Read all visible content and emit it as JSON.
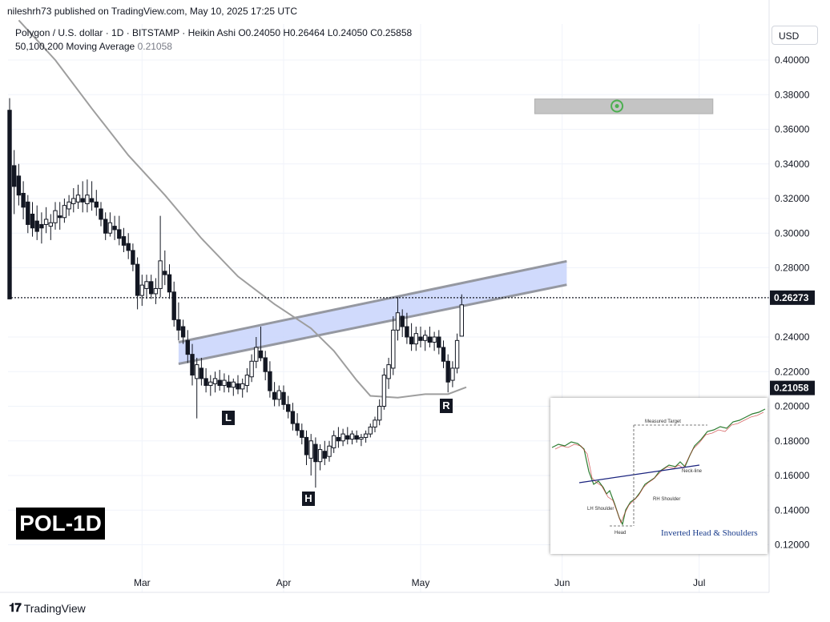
{
  "header": {
    "published_line": "nileshrh73 published on TradingView.com, May 10, 2025 17:25 UTC",
    "legend_line1": "Polygon / U.S. dollar · 1D · BITSTAMP · Heikin Ashi  O0.24050  H0.26464  L0.24050  C0.25858",
    "legend_line2_label": "50,100,200 Moving Average",
    "legend_line2_value": "0.21058",
    "currency_button": "USD"
  },
  "badges": {
    "ticker": "POL-1D",
    "left_shoulder": "L",
    "head": "H",
    "right_shoulder": "R"
  },
  "branding": {
    "logo_text": "TradingView",
    "logo_icon": "tradingview-logo-icon"
  },
  "colors": {
    "bull": "#131722",
    "bear": "#131722",
    "neckline_fill": "#c8d3fb",
    "neckline_stroke": "#9598a1",
    "ma_line": "#9e9e9e",
    "target_box": "#c4c4c4",
    "target_icon": "#4caf50",
    "price_label_bg": "#131722"
  },
  "chart_data": {
    "type": "candlestick",
    "symbol": "Polygon / U.S. dollar",
    "interval": "1D",
    "exchange": "BITSTAMP",
    "style": "Heikin Ashi",
    "ohlc_last": {
      "open": 0.2405,
      "high": 0.26464,
      "low": 0.2405,
      "close": 0.25858
    },
    "y_ticks": [
      0.4,
      0.38,
      0.36,
      0.34,
      0.32,
      0.3,
      0.28,
      0.24,
      0.22,
      0.2,
      0.18,
      0.16,
      0.14,
      0.12
    ],
    "y_tick_labels": [
      "0.40000",
      "0.38000",
      "0.36000",
      "0.34000",
      "0.32000",
      "0.30000",
      "0.28000",
      "0.24000",
      "0.22000",
      "0.20000",
      "0.18000",
      "0.16000",
      "0.14000",
      "0.12000"
    ],
    "ylim": [
      0.105,
      0.41
    ],
    "x_labels": [
      {
        "label": "Mar",
        "date": "2025-03-01"
      },
      {
        "label": "Apr",
        "date": "2025-04-01"
      },
      {
        "label": "May",
        "date": "2025-05-01"
      },
      {
        "label": "Jun",
        "date": "2025-06-01"
      },
      {
        "label": "Jul",
        "date": "2025-07-01"
      }
    ],
    "current_price": {
      "value": 0.26273,
      "label": "0.26273"
    },
    "ma_price": {
      "value": 0.21058,
      "label": "0.21058"
    },
    "moving_average": {
      "name": "50,100,200 Moving Average",
      "points": [
        {
          "date": "2025-02-02",
          "value": 0.423
        },
        {
          "date": "2025-02-10",
          "value": 0.4
        },
        {
          "date": "2025-02-18",
          "value": 0.372
        },
        {
          "date": "2025-02-26",
          "value": 0.345
        },
        {
          "date": "2025-03-06",
          "value": 0.322
        },
        {
          "date": "2025-03-14",
          "value": 0.297
        },
        {
          "date": "2025-03-22",
          "value": 0.275
        },
        {
          "date": "2025-03-30",
          "value": 0.259
        },
        {
          "date": "2025-04-07",
          "value": 0.245
        },
        {
          "date": "2025-04-12",
          "value": 0.232
        },
        {
          "date": "2025-04-17",
          "value": 0.215
        },
        {
          "date": "2025-04-20",
          "value": 0.206
        },
        {
          "date": "2025-04-26",
          "value": 0.205
        },
        {
          "date": "2025-05-02",
          "value": 0.207
        },
        {
          "date": "2025-05-07",
          "value": 0.207
        },
        {
          "date": "2025-05-11",
          "value": 0.211
        }
      ]
    },
    "neckline_channel": {
      "start_date": "2025-03-09",
      "end_date": "2025-06-02",
      "upper": [
        0.237,
        0.2838
      ],
      "lower": [
        0.2245,
        0.2702
      ]
    },
    "target_zone": {
      "start_date": "2025-05-26",
      "end_date": "2025-07-04",
      "top": 0.3775,
      "bottom": 0.369,
      "marker_date": "2025-06-13",
      "marker_value": 0.3734
    },
    "candles": [
      {
        "date": "2025-01-31",
        "o": 0.371,
        "h": 0.378,
        "l": 0.262,
        "c": 0.262
      },
      {
        "date": "2025-02-01",
        "o": 0.339,
        "h": 0.348,
        "l": 0.311,
        "c": 0.327
      },
      {
        "date": "2025-02-02",
        "o": 0.333,
        "h": 0.34,
        "l": 0.316,
        "c": 0.322
      },
      {
        "date": "2025-02-03",
        "o": 0.323,
        "h": 0.33,
        "l": 0.308,
        "c": 0.315
      },
      {
        "date": "2025-02-04",
        "o": 0.318,
        "h": 0.322,
        "l": 0.3,
        "c": 0.305
      },
      {
        "date": "2025-02-05",
        "o": 0.311,
        "h": 0.318,
        "l": 0.298,
        "c": 0.303
      },
      {
        "date": "2025-02-06",
        "o": 0.307,
        "h": 0.316,
        "l": 0.296,
        "c": 0.301
      },
      {
        "date": "2025-02-07",
        "o": 0.305,
        "h": 0.312,
        "l": 0.294,
        "c": 0.303
      },
      {
        "date": "2025-02-08",
        "o": 0.305,
        "h": 0.315,
        "l": 0.3,
        "c": 0.308
      },
      {
        "date": "2025-02-09",
        "o": 0.304,
        "h": 0.311,
        "l": 0.296,
        "c": 0.306
      },
      {
        "date": "2025-02-10",
        "o": 0.306,
        "h": 0.318,
        "l": 0.302,
        "c": 0.313
      },
      {
        "date": "2025-02-11",
        "o": 0.31,
        "h": 0.318,
        "l": 0.302,
        "c": 0.309
      },
      {
        "date": "2025-02-12",
        "o": 0.309,
        "h": 0.32,
        "l": 0.306,
        "c": 0.316
      },
      {
        "date": "2025-02-13",
        "o": 0.314,
        "h": 0.322,
        "l": 0.31,
        "c": 0.318
      },
      {
        "date": "2025-02-14",
        "o": 0.317,
        "h": 0.326,
        "l": 0.312,
        "c": 0.32
      },
      {
        "date": "2025-02-15",
        "o": 0.318,
        "h": 0.328,
        "l": 0.314,
        "c": 0.322
      },
      {
        "date": "2025-02-16",
        "o": 0.32,
        "h": 0.33,
        "l": 0.312,
        "c": 0.318
      },
      {
        "date": "2025-02-17",
        "o": 0.317,
        "h": 0.331,
        "l": 0.312,
        "c": 0.322
      },
      {
        "date": "2025-02-18",
        "o": 0.32,
        "h": 0.33,
        "l": 0.313,
        "c": 0.318
      },
      {
        "date": "2025-02-19",
        "o": 0.318,
        "h": 0.325,
        "l": 0.31,
        "c": 0.315
      },
      {
        "date": "2025-02-20",
        "o": 0.314,
        "h": 0.318,
        "l": 0.304,
        "c": 0.308
      },
      {
        "date": "2025-02-21",
        "o": 0.308,
        "h": 0.312,
        "l": 0.296,
        "c": 0.3
      },
      {
        "date": "2025-02-22",
        "o": 0.3,
        "h": 0.312,
        "l": 0.298,
        "c": 0.306
      },
      {
        "date": "2025-02-23",
        "o": 0.304,
        "h": 0.31,
        "l": 0.296,
        "c": 0.302
      },
      {
        "date": "2025-02-24",
        "o": 0.302,
        "h": 0.31,
        "l": 0.293,
        "c": 0.297
      },
      {
        "date": "2025-02-25",
        "o": 0.298,
        "h": 0.303,
        "l": 0.289,
        "c": 0.293
      },
      {
        "date": "2025-02-26",
        "o": 0.294,
        "h": 0.3,
        "l": 0.285,
        "c": 0.29
      },
      {
        "date": "2025-02-27",
        "o": 0.29,
        "h": 0.294,
        "l": 0.278,
        "c": 0.282
      },
      {
        "date": "2025-02-28",
        "o": 0.282,
        "h": 0.286,
        "l": 0.256,
        "c": 0.264
      },
      {
        "date": "2025-03-01",
        "o": 0.264,
        "h": 0.276,
        "l": 0.258,
        "c": 0.27
      },
      {
        "date": "2025-03-02",
        "o": 0.268,
        "h": 0.276,
        "l": 0.262,
        "c": 0.272
      },
      {
        "date": "2025-03-03",
        "o": 0.272,
        "h": 0.276,
        "l": 0.262,
        "c": 0.265
      },
      {
        "date": "2025-03-04",
        "o": 0.265,
        "h": 0.274,
        "l": 0.259,
        "c": 0.268
      },
      {
        "date": "2025-03-05",
        "o": 0.268,
        "h": 0.31,
        "l": 0.263,
        "c": 0.284
      },
      {
        "date": "2025-03-06",
        "o": 0.278,
        "h": 0.29,
        "l": 0.27,
        "c": 0.276
      },
      {
        "date": "2025-03-07",
        "o": 0.276,
        "h": 0.282,
        "l": 0.262,
        "c": 0.266
      },
      {
        "date": "2025-03-08",
        "o": 0.266,
        "h": 0.272,
        "l": 0.246,
        "c": 0.25
      },
      {
        "date": "2025-03-09",
        "o": 0.25,
        "h": 0.26,
        "l": 0.238,
        "c": 0.244
      },
      {
        "date": "2025-03-10",
        "o": 0.246,
        "h": 0.25,
        "l": 0.236,
        "c": 0.24
      },
      {
        "date": "2025-03-11",
        "o": 0.238,
        "h": 0.244,
        "l": 0.225,
        "c": 0.23
      },
      {
        "date": "2025-03-12",
        "o": 0.23,
        "h": 0.236,
        "l": 0.212,
        "c": 0.218
      },
      {
        "date": "2025-03-13",
        "o": 0.216,
        "h": 0.228,
        "l": 0.193,
        "c": 0.224
      },
      {
        "date": "2025-03-14",
        "o": 0.222,
        "h": 0.228,
        "l": 0.212,
        "c": 0.216
      },
      {
        "date": "2025-03-15",
        "o": 0.216,
        "h": 0.222,
        "l": 0.208,
        "c": 0.212
      },
      {
        "date": "2025-03-16",
        "o": 0.212,
        "h": 0.218,
        "l": 0.206,
        "c": 0.214
      },
      {
        "date": "2025-03-17",
        "o": 0.213,
        "h": 0.22,
        "l": 0.208,
        "c": 0.216
      },
      {
        "date": "2025-03-18",
        "o": 0.215,
        "h": 0.221,
        "l": 0.209,
        "c": 0.212
      },
      {
        "date": "2025-03-19",
        "o": 0.212,
        "h": 0.219,
        "l": 0.208,
        "c": 0.215
      },
      {
        "date": "2025-03-20",
        "o": 0.214,
        "h": 0.218,
        "l": 0.208,
        "c": 0.211
      },
      {
        "date": "2025-03-21",
        "o": 0.211,
        "h": 0.216,
        "l": 0.206,
        "c": 0.214
      },
      {
        "date": "2025-03-22",
        "o": 0.213,
        "h": 0.218,
        "l": 0.207,
        "c": 0.21
      },
      {
        "date": "2025-03-23",
        "o": 0.21,
        "h": 0.216,
        "l": 0.205,
        "c": 0.213
      },
      {
        "date": "2025-03-24",
        "o": 0.212,
        "h": 0.222,
        "l": 0.208,
        "c": 0.218
      },
      {
        "date": "2025-03-25",
        "o": 0.217,
        "h": 0.23,
        "l": 0.214,
        "c": 0.226
      },
      {
        "date": "2025-03-26",
        "o": 0.226,
        "h": 0.24,
        "l": 0.222,
        "c": 0.234
      },
      {
        "date": "2025-03-27",
        "o": 0.232,
        "h": 0.246,
        "l": 0.226,
        "c": 0.228
      },
      {
        "date": "2025-03-28",
        "o": 0.228,
        "h": 0.232,
        "l": 0.215,
        "c": 0.22
      },
      {
        "date": "2025-03-29",
        "o": 0.22,
        "h": 0.226,
        "l": 0.205,
        "c": 0.209
      },
      {
        "date": "2025-03-30",
        "o": 0.208,
        "h": 0.214,
        "l": 0.2,
        "c": 0.204
      },
      {
        "date": "2025-03-31",
        "o": 0.204,
        "h": 0.212,
        "l": 0.2,
        "c": 0.209
      },
      {
        "date": "2025-04-01",
        "o": 0.208,
        "h": 0.212,
        "l": 0.198,
        "c": 0.201
      },
      {
        "date": "2025-04-02",
        "o": 0.201,
        "h": 0.206,
        "l": 0.193,
        "c": 0.197
      },
      {
        "date": "2025-04-03",
        "o": 0.197,
        "h": 0.202,
        "l": 0.186,
        "c": 0.19
      },
      {
        "date": "2025-04-04",
        "o": 0.19,
        "h": 0.196,
        "l": 0.183,
        "c": 0.186
      },
      {
        "date": "2025-04-05",
        "o": 0.186,
        "h": 0.19,
        "l": 0.178,
        "c": 0.182
      },
      {
        "date": "2025-04-06",
        "o": 0.182,
        "h": 0.186,
        "l": 0.166,
        "c": 0.172
      },
      {
        "date": "2025-04-07",
        "o": 0.17,
        "h": 0.184,
        "l": 0.16,
        "c": 0.18
      },
      {
        "date": "2025-04-08",
        "o": 0.178,
        "h": 0.182,
        "l": 0.153,
        "c": 0.168
      },
      {
        "date": "2025-04-09",
        "o": 0.168,
        "h": 0.178,
        "l": 0.163,
        "c": 0.175
      },
      {
        "date": "2025-04-10",
        "o": 0.174,
        "h": 0.18,
        "l": 0.166,
        "c": 0.17
      },
      {
        "date": "2025-04-11",
        "o": 0.171,
        "h": 0.18,
        "l": 0.168,
        "c": 0.177
      },
      {
        "date": "2025-04-12",
        "o": 0.176,
        "h": 0.186,
        "l": 0.173,
        "c": 0.183
      },
      {
        "date": "2025-04-13",
        "o": 0.182,
        "h": 0.188,
        "l": 0.176,
        "c": 0.18
      },
      {
        "date": "2025-04-14",
        "o": 0.18,
        "h": 0.187,
        "l": 0.177,
        "c": 0.184
      },
      {
        "date": "2025-04-15",
        "o": 0.183,
        "h": 0.188,
        "l": 0.178,
        "c": 0.181
      },
      {
        "date": "2025-04-16",
        "o": 0.181,
        "h": 0.186,
        "l": 0.178,
        "c": 0.184
      },
      {
        "date": "2025-04-17",
        "o": 0.183,
        "h": 0.186,
        "l": 0.179,
        "c": 0.181
      },
      {
        "date": "2025-04-18",
        "o": 0.181,
        "h": 0.184,
        "l": 0.177,
        "c": 0.182
      },
      {
        "date": "2025-04-19",
        "o": 0.182,
        "h": 0.186,
        "l": 0.179,
        "c": 0.184
      },
      {
        "date": "2025-04-20",
        "o": 0.184,
        "h": 0.19,
        "l": 0.182,
        "c": 0.188
      },
      {
        "date": "2025-04-21",
        "o": 0.188,
        "h": 0.194,
        "l": 0.185,
        "c": 0.192
      },
      {
        "date": "2025-04-22",
        "o": 0.192,
        "h": 0.204,
        "l": 0.189,
        "c": 0.2
      },
      {
        "date": "2025-04-23",
        "o": 0.2,
        "h": 0.222,
        "l": 0.198,
        "c": 0.218
      },
      {
        "date": "2025-04-24",
        "o": 0.216,
        "h": 0.228,
        "l": 0.21,
        "c": 0.224
      },
      {
        "date": "2025-04-25",
        "o": 0.222,
        "h": 0.252,
        "l": 0.218,
        "c": 0.244
      },
      {
        "date": "2025-04-26",
        "o": 0.244,
        "h": 0.263,
        "l": 0.238,
        "c": 0.254
      },
      {
        "date": "2025-04-27",
        "o": 0.252,
        "h": 0.256,
        "l": 0.24,
        "c": 0.246
      },
      {
        "date": "2025-04-28",
        "o": 0.246,
        "h": 0.254,
        "l": 0.236,
        "c": 0.24
      },
      {
        "date": "2025-04-29",
        "o": 0.24,
        "h": 0.248,
        "l": 0.232,
        "c": 0.236
      },
      {
        "date": "2025-04-30",
        "o": 0.236,
        "h": 0.246,
        "l": 0.232,
        "c": 0.242
      },
      {
        "date": "2025-05-01",
        "o": 0.24,
        "h": 0.246,
        "l": 0.234,
        "c": 0.238
      },
      {
        "date": "2025-05-02",
        "o": 0.238,
        "h": 0.244,
        "l": 0.232,
        "c": 0.241
      },
      {
        "date": "2025-05-03",
        "o": 0.24,
        "h": 0.246,
        "l": 0.234,
        "c": 0.237
      },
      {
        "date": "2025-05-04",
        "o": 0.237,
        "h": 0.243,
        "l": 0.232,
        "c": 0.24
      },
      {
        "date": "2025-05-05",
        "o": 0.24,
        "h": 0.244,
        "l": 0.23,
        "c": 0.234
      },
      {
        "date": "2025-05-06",
        "o": 0.234,
        "h": 0.238,
        "l": 0.222,
        "c": 0.226
      },
      {
        "date": "2025-05-07",
        "o": 0.226,
        "h": 0.23,
        "l": 0.208,
        "c": 0.214
      },
      {
        "date": "2025-05-08",
        "o": 0.215,
        "h": 0.226,
        "l": 0.211,
        "c": 0.222
      },
      {
        "date": "2025-05-09",
        "o": 0.222,
        "h": 0.242,
        "l": 0.219,
        "c": 0.238
      },
      {
        "date": "2025-05-10",
        "o": 0.2405,
        "h": 0.26464,
        "l": 0.2405,
        "c": 0.25858
      }
    ]
  },
  "inset": {
    "caption": "Inverted Head & Shoulders",
    "measured_target_label": "Measured Target",
    "neckline_label": "Neck-line",
    "lh_label": "LH Shoulder",
    "rh_label": "RH Shoulder",
    "head_label": "Head"
  }
}
